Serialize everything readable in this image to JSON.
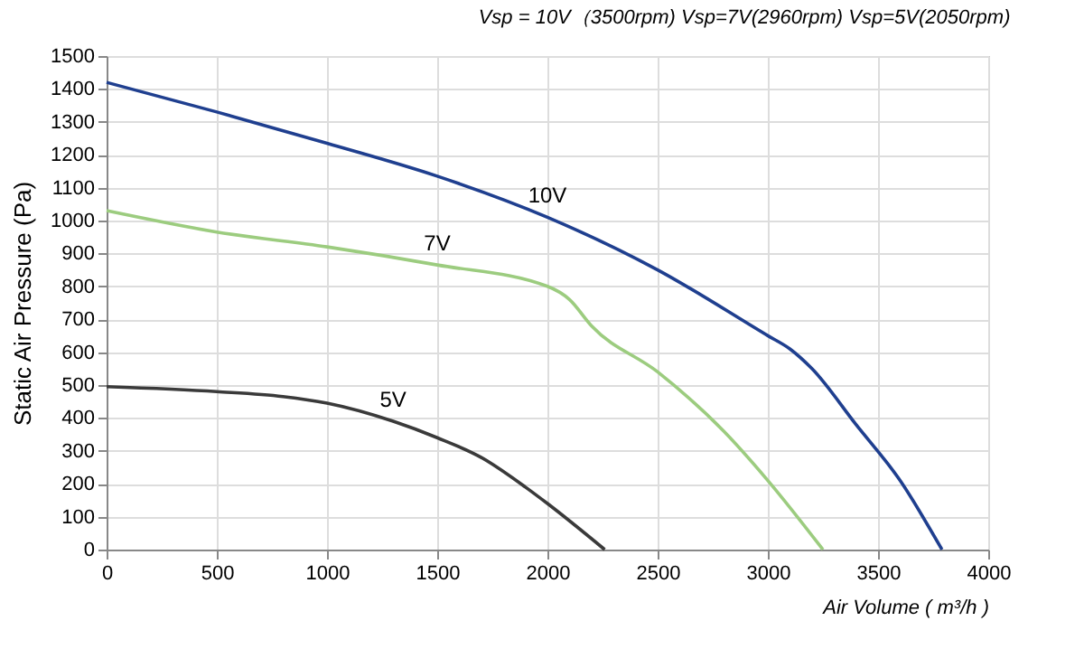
{
  "chart_data": {
    "type": "line",
    "title": "Vsp = 10V（3500rpm)     Vsp=7V(2960rpm)     Vsp=5V(2050rpm)",
    "xlabel": "Air Volume ( m³/h )",
    "ylabel": "Static Air Pressure  (Pa)",
    "series": [
      {
        "name": "10V",
        "color": "#1f3f8f",
        "x": [
          0,
          500,
          1000,
          1500,
          2000,
          2500,
          3000,
          3100,
          3200,
          3400,
          3600,
          3790
        ],
        "values": [
          1420,
          1330,
          1235,
          1135,
          1010,
          850,
          650,
          610,
          550,
          380,
          210,
          0
        ]
      },
      {
        "name": "7V",
        "color": "#9ccc7f",
        "x": [
          0,
          500,
          1000,
          1500,
          2000,
          2100,
          2200,
          2500,
          2800,
          3000,
          3250
        ],
        "values": [
          1030,
          965,
          920,
          865,
          800,
          760,
          680,
          540,
          360,
          210,
          0
        ]
      },
      {
        "name": "5V",
        "color": "#3a3a3a",
        "x": [
          0,
          500,
          800,
          1000,
          1300,
          1500,
          1700,
          1900,
          2000,
          2260
        ],
        "values": [
          495,
          480,
          465,
          445,
          390,
          340,
          280,
          190,
          140,
          0
        ]
      }
    ],
    "xlim": [
      0,
      4000
    ],
    "xticks": [
      0,
      500,
      1000,
      1500,
      2000,
      2500,
      3000,
      3500,
      4000
    ],
    "ylim": [
      0,
      1500
    ],
    "yticks": [
      0,
      100,
      200,
      300,
      400,
      500,
      600,
      700,
      800,
      900,
      1000,
      1100,
      1200,
      1300,
      1400,
      1500
    ],
    "grid": true,
    "legend": false,
    "marker": "none",
    "line_style": "solid"
  }
}
